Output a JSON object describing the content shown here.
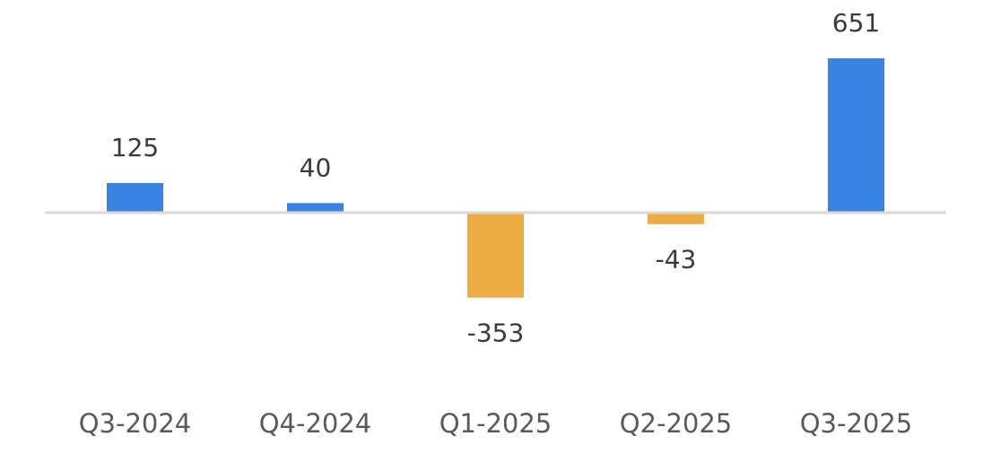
{
  "chart_data": {
    "type": "bar",
    "title": "",
    "xlabel": "",
    "ylabel": "",
    "categories": [
      "Q3-2024",
      "Q4-2024",
      "Q1-2025",
      "Q2-2025",
      "Q3-2025"
    ],
    "values": [
      125,
      40,
      -353,
      -43,
      651
    ],
    "data_labels": [
      "125",
      "40",
      "-353",
      "-43",
      "651"
    ],
    "ylim": [
      -780,
      780
    ],
    "grid": false,
    "legend": "none",
    "colors": {
      "positive": "#3884E2",
      "negative": "#EEAC47",
      "zero_line": "#D9D9D9"
    }
  }
}
